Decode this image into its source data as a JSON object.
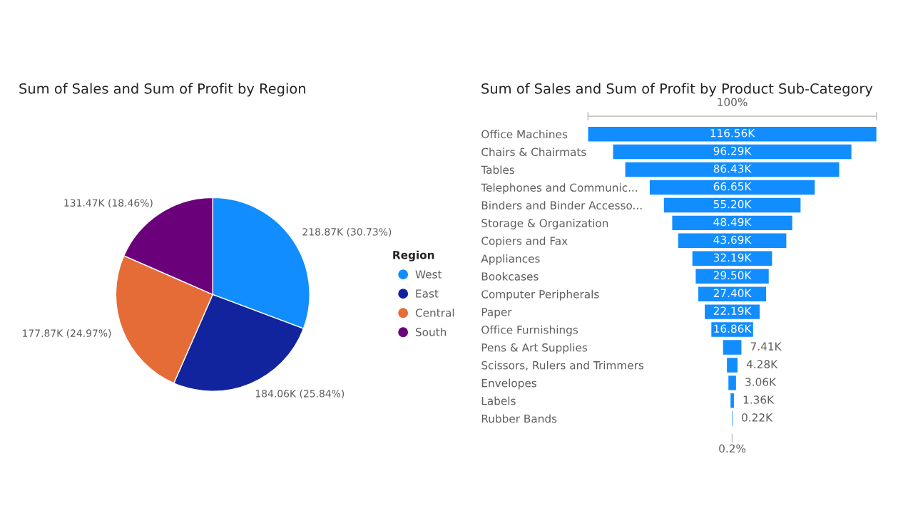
{
  "chart_data": [
    {
      "type": "pie",
      "title": "Sum of Sales and Sum of Profit by Region",
      "legend_title": "Region",
      "legend": "right",
      "categories": [
        "West",
        "East",
        "Central",
        "South"
      ],
      "values": [
        218870,
        184060,
        177870,
        131470
      ],
      "colors": [
        "#118dff",
        "#12239e",
        "#e66c37",
        "#6b007b"
      ],
      "value_labels": [
        "218.87K (30.73%)",
        "184.06K (25.84%)",
        "177.87K (24.97%)",
        "131.47K (18.46%)"
      ]
    },
    {
      "type": "other",
      "title": "Sum of Sales and Sum of Profit by Product Sub-Category",
      "color": "#118dff",
      "categories": [
        "Office Machines",
        "Chairs & Chairmats",
        "Tables",
        "Telephones and Communic...",
        "Binders and Binder Accesso...",
        "Storage & Organization",
        "Copiers and Fax",
        "Appliances",
        "Bookcases",
        "Computer Peripherals",
        "Paper",
        "Office Furnishings",
        "Pens & Art Supplies",
        "Scissors, Rulers and Trimmers",
        "Envelopes",
        "Labels",
        "Rubber Bands"
      ],
      "values": [
        116560,
        96290,
        86430,
        66650,
        55200,
        48490,
        43690,
        32190,
        29500,
        27400,
        22190,
        16860,
        7410,
        4280,
        3060,
        1360,
        220
      ],
      "value_labels": [
        "116.56K",
        "96.29K",
        "86.43K",
        "66.65K",
        "55.20K",
        "48.49K",
        "43.69K",
        "32.19K",
        "29.50K",
        "27.40K",
        "22.19K",
        "16.86K",
        "7.41K",
        "4.28K",
        "3.06K",
        "1.36K",
        "0.22K"
      ],
      "annotations": [
        "100%",
        "0.2%"
      ]
    }
  ]
}
